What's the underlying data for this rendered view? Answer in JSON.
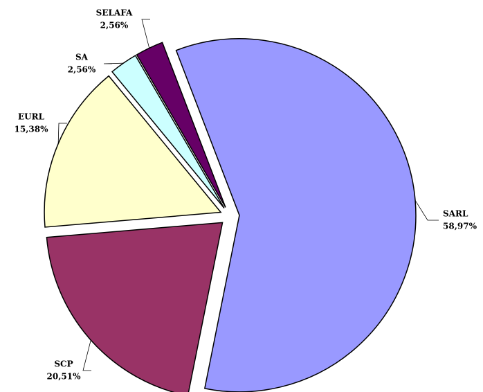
{
  "chart_data": {
    "type": "pie",
    "categories": [
      "SARL",
      "SCP",
      "EURL",
      "SA",
      "SELAFA"
    ],
    "values": [
      58.97,
      20.51,
      15.38,
      2.56,
      2.56
    ],
    "value_labels": [
      "58,97%",
      "20,51%",
      "15,38%",
      "2,56%",
      "2,56%"
    ],
    "colors": [
      "#9999ff",
      "#993366",
      "#ffffcc",
      "#ccffff",
      "#660066"
    ]
  }
}
